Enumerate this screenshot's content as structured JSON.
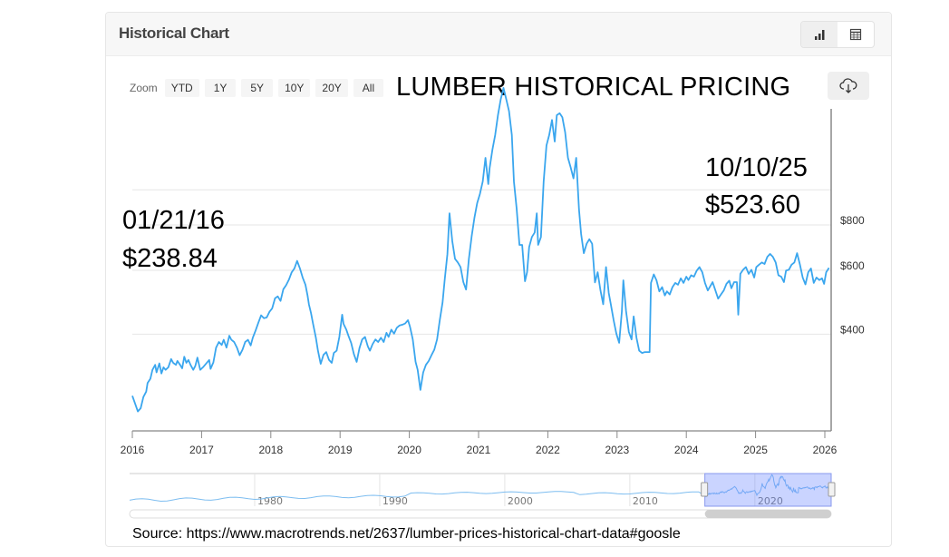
{
  "header": {
    "title": "Historical Chart",
    "toggle": [
      {
        "name": "chart-view",
        "icon": "bar-chart-icon",
        "active": true
      },
      {
        "name": "table-view",
        "icon": "table-icon",
        "active": false
      }
    ]
  },
  "zoom": {
    "label": "Zoom",
    "options": [
      "YTD",
      "1Y",
      "5Y",
      "10Y",
      "20Y",
      "All"
    ]
  },
  "download_icon": "cloud-download-icon",
  "annotations": {
    "start_date": "01/21/16",
    "start_price": "$238.84",
    "end_date": "10/10/25",
    "end_price": "$523.60"
  },
  "source": "Source: https://www.macrotrends.net/2637/lumber-prices-historical-chart-data#goosle",
  "chart_data": {
    "type": "line",
    "title": "LUMBER HISTORICAL PRICING",
    "xlabel": "",
    "ylabel": "",
    "y_scale": "log",
    "ylim": [
      205,
      1620
    ],
    "xlim": [
      2016.0,
      2026.1
    ],
    "x_ticks": [
      "2016",
      "2017",
      "2018",
      "2019",
      "2020",
      "2021",
      "2022",
      "2023",
      "2024",
      "2025",
      "2026"
    ],
    "y_ticks": [
      {
        "value": 400,
        "label": "$400"
      },
      {
        "value": 600,
        "label": "$600"
      },
      {
        "value": 800,
        "label": "$800"
      }
    ],
    "gridlines": [
      400,
      600,
      800,
      1000
    ],
    "grid": true,
    "legend": "none",
    "line_color": "#3aa6ee",
    "series": [
      {
        "name": "Lumber Price",
        "points": [
          [
            2016.0,
            263
          ],
          [
            2016.04,
            250
          ],
          [
            2016.08,
            238
          ],
          [
            2016.12,
            243
          ],
          [
            2016.16,
            261
          ],
          [
            2016.2,
            270
          ],
          [
            2016.22,
            285
          ],
          [
            2016.26,
            293
          ],
          [
            2016.29,
            310
          ],
          [
            2016.33,
            320
          ],
          [
            2016.35,
            305
          ],
          [
            2016.39,
            323
          ],
          [
            2016.42,
            303
          ],
          [
            2016.45,
            315
          ],
          [
            2016.48,
            310
          ],
          [
            2016.52,
            315
          ],
          [
            2016.56,
            332
          ],
          [
            2016.59,
            324
          ],
          [
            2016.63,
            320
          ],
          [
            2016.65,
            328
          ],
          [
            2016.69,
            320
          ],
          [
            2016.72,
            313
          ],
          [
            2016.75,
            337
          ],
          [
            2016.78,
            324
          ],
          [
            2016.81,
            330
          ],
          [
            2016.84,
            320
          ],
          [
            2016.88,
            310
          ],
          [
            2016.91,
            318
          ],
          [
            2016.94,
            335
          ],
          [
            2016.98,
            310
          ],
          [
            2017.02,
            315
          ],
          [
            2017.11,
            330
          ],
          [
            2017.13,
            312
          ],
          [
            2017.17,
            325
          ],
          [
            2017.21,
            357
          ],
          [
            2017.25,
            370
          ],
          [
            2017.29,
            363
          ],
          [
            2017.32,
            375
          ],
          [
            2017.36,
            357
          ],
          [
            2017.4,
            385
          ],
          [
            2017.43,
            375
          ],
          [
            2017.47,
            370
          ],
          [
            2017.51,
            357
          ],
          [
            2017.55,
            340
          ],
          [
            2017.59,
            352
          ],
          [
            2017.63,
            370
          ],
          [
            2017.67,
            375
          ],
          [
            2017.71,
            362
          ],
          [
            2017.74,
            380
          ],
          [
            2017.78,
            398
          ],
          [
            2017.82,
            418
          ],
          [
            2017.86,
            438
          ],
          [
            2017.9,
            430
          ],
          [
            2017.94,
            432
          ],
          [
            2017.98,
            448
          ],
          [
            2018.02,
            458
          ],
          [
            2018.06,
            488
          ],
          [
            2018.1,
            494
          ],
          [
            2018.14,
            480
          ],
          [
            2018.18,
            517
          ],
          [
            2018.22,
            530
          ],
          [
            2018.26,
            549
          ],
          [
            2018.3,
            575
          ],
          [
            2018.34,
            590
          ],
          [
            2018.38,
            619
          ],
          [
            2018.42,
            590
          ],
          [
            2018.46,
            557
          ],
          [
            2018.5,
            532
          ],
          [
            2018.53,
            497
          ],
          [
            2018.55,
            470
          ],
          [
            2018.58,
            445
          ],
          [
            2018.61,
            415
          ],
          [
            2018.65,
            380
          ],
          [
            2018.68,
            350
          ],
          [
            2018.72,
            322
          ],
          [
            2018.76,
            341
          ],
          [
            2018.8,
            347
          ],
          [
            2018.84,
            330
          ],
          [
            2018.88,
            324
          ],
          [
            2018.91,
            345
          ],
          [
            2018.95,
            350
          ],
          [
            2018.99,
            382
          ],
          [
            2019.03,
            440
          ],
          [
            2019.05,
            415
          ],
          [
            2019.09,
            400
          ],
          [
            2019.12,
            385
          ],
          [
            2019.16,
            368
          ],
          [
            2019.2,
            342
          ],
          [
            2019.24,
            326
          ],
          [
            2019.28,
            356
          ],
          [
            2019.32,
            376
          ],
          [
            2019.36,
            382
          ],
          [
            2019.4,
            360
          ],
          [
            2019.43,
            350
          ],
          [
            2019.47,
            365
          ],
          [
            2019.51,
            376
          ],
          [
            2019.55,
            370
          ],
          [
            2019.59,
            380
          ],
          [
            2019.63,
            370
          ],
          [
            2019.67,
            392
          ],
          [
            2019.7,
            382
          ],
          [
            2019.74,
            400
          ],
          [
            2019.78,
            390
          ],
          [
            2019.82,
            405
          ],
          [
            2019.86,
            411
          ],
          [
            2019.9,
            413
          ],
          [
            2019.94,
            416
          ],
          [
            2019.98,
            425
          ],
          [
            2020.01,
            407
          ],
          [
            2020.05,
            376
          ],
          [
            2020.09,
            326
          ],
          [
            2020.12,
            310
          ],
          [
            2020.16,
            273
          ],
          [
            2020.2,
            305
          ],
          [
            2020.24,
            320
          ],
          [
            2020.28,
            328
          ],
          [
            2020.32,
            340
          ],
          [
            2020.36,
            352
          ],
          [
            2020.4,
            376
          ],
          [
            2020.44,
            425
          ],
          [
            2020.48,
            476
          ],
          [
            2020.51,
            548
          ],
          [
            2020.55,
            646
          ],
          [
            2020.58,
            837
          ],
          [
            2020.62,
            701
          ],
          [
            2020.66,
            627
          ],
          [
            2020.7,
            613
          ],
          [
            2020.74,
            595
          ],
          [
            2020.78,
            541
          ],
          [
            2020.82,
            516
          ],
          [
            2020.86,
            627
          ],
          [
            2020.9,
            724
          ],
          [
            2020.94,
            813
          ],
          [
            2020.98,
            894
          ],
          [
            2021.02,
            947
          ],
          [
            2021.06,
            1024
          ],
          [
            2021.1,
            1190
          ],
          [
            2021.14,
            1008
          ],
          [
            2021.16,
            1116
          ],
          [
            2021.2,
            1255
          ],
          [
            2021.24,
            1375
          ],
          [
            2021.28,
            1562
          ],
          [
            2021.32,
            1723
          ],
          [
            2021.36,
            1855
          ],
          [
            2021.4,
            1723
          ],
          [
            2021.44,
            1600
          ],
          [
            2021.48,
            1375
          ],
          [
            2021.51,
            1024
          ],
          [
            2021.55,
            862
          ],
          [
            2021.59,
            685
          ],
          [
            2021.63,
            685
          ],
          [
            2021.67,
            544
          ],
          [
            2021.7,
            576
          ],
          [
            2021.73,
            676
          ],
          [
            2021.77,
            720
          ],
          [
            2021.81,
            741
          ],
          [
            2021.84,
            837
          ],
          [
            2021.86,
            685
          ],
          [
            2021.9,
            720
          ],
          [
            2021.94,
            1024
          ],
          [
            2021.98,
            1288
          ],
          [
            2022.02,
            1375
          ],
          [
            2022.06,
            1513
          ],
          [
            2022.1,
            1320
          ],
          [
            2022.13,
            1560
          ],
          [
            2022.17,
            1580
          ],
          [
            2022.21,
            1540
          ],
          [
            2022.25,
            1400
          ],
          [
            2022.29,
            1190
          ],
          [
            2022.33,
            1120
          ],
          [
            2022.37,
            1045
          ],
          [
            2022.41,
            1190
          ],
          [
            2022.45,
            857
          ],
          [
            2022.48,
            735
          ],
          [
            2022.52,
            650
          ],
          [
            2022.56,
            690
          ],
          [
            2022.6,
            710
          ],
          [
            2022.64,
            690
          ],
          [
            2022.68,
            540
          ],
          [
            2022.72,
            576
          ],
          [
            2022.76,
            513
          ],
          [
            2022.8,
            470
          ],
          [
            2022.84,
            595
          ],
          [
            2022.88,
            505
          ],
          [
            2022.91,
            470
          ],
          [
            2022.95,
            425
          ],
          [
            2022.99,
            390
          ],
          [
            2023.03,
            368
          ],
          [
            2023.07,
            450
          ],
          [
            2023.09,
            547
          ],
          [
            2023.13,
            450
          ],
          [
            2023.17,
            394
          ],
          [
            2023.21,
            376
          ],
          [
            2023.24,
            435
          ],
          [
            2023.28,
            380
          ],
          [
            2023.32,
            350
          ],
          [
            2023.36,
            345
          ],
          [
            2023.4,
            347
          ],
          [
            2023.43,
            347
          ],
          [
            2023.47,
            347
          ],
          [
            2023.49,
            538
          ],
          [
            2023.53,
            568
          ],
          [
            2023.57,
            547
          ],
          [
            2023.61,
            510
          ],
          [
            2023.65,
            524
          ],
          [
            2023.69,
            497
          ],
          [
            2023.72,
            510
          ],
          [
            2023.76,
            500
          ],
          [
            2023.8,
            524
          ],
          [
            2023.84,
            538
          ],
          [
            2023.88,
            532
          ],
          [
            2023.92,
            554
          ],
          [
            2023.96,
            538
          ],
          [
            2024.0,
            560
          ],
          [
            2024.03,
            548
          ],
          [
            2024.07,
            565
          ],
          [
            2024.11,
            560
          ],
          [
            2024.15,
            582
          ],
          [
            2024.19,
            595
          ],
          [
            2024.23,
            576
          ],
          [
            2024.27,
            538
          ],
          [
            2024.31,
            513
          ],
          [
            2024.34,
            525
          ],
          [
            2024.38,
            541
          ],
          [
            2024.42,
            513
          ],
          [
            2024.46,
            487
          ],
          [
            2024.5,
            500
          ],
          [
            2024.54,
            513
          ],
          [
            2024.58,
            535
          ],
          [
            2024.62,
            546
          ],
          [
            2024.65,
            520
          ],
          [
            2024.69,
            541
          ],
          [
            2024.73,
            541
          ],
          [
            2024.75,
            440
          ],
          [
            2024.78,
            570
          ],
          [
            2024.82,
            585
          ],
          [
            2024.86,
            595
          ],
          [
            2024.9,
            570
          ],
          [
            2024.94,
            585
          ],
          [
            2024.98,
            557
          ],
          [
            2025.01,
            595
          ],
          [
            2025.05,
            604
          ],
          [
            2025.09,
            613
          ],
          [
            2025.13,
            607
          ],
          [
            2025.17,
            635
          ],
          [
            2025.21,
            647
          ],
          [
            2025.25,
            635
          ],
          [
            2025.29,
            613
          ],
          [
            2025.33,
            565
          ],
          [
            2025.37,
            560
          ],
          [
            2025.41,
            541
          ],
          [
            2025.44,
            582
          ],
          [
            2025.48,
            585
          ],
          [
            2025.52,
            604
          ],
          [
            2025.56,
            613
          ],
          [
            2025.6,
            650
          ],
          [
            2025.64,
            605
          ],
          [
            2025.68,
            557
          ],
          [
            2025.72,
            533
          ],
          [
            2025.76,
            576
          ],
          [
            2025.8,
            590
          ],
          [
            2025.84,
            538
          ],
          [
            2025.88,
            557
          ],
          [
            2025.92,
            548
          ],
          [
            2025.96,
            554
          ],
          [
            2025.99,
            535
          ],
          [
            2026.02,
            576
          ],
          [
            2026.06,
            592
          ]
        ]
      }
    ]
  },
  "navigator": {
    "labels": [
      "1980",
      "1990",
      "2000",
      "2010",
      "2020"
    ]
  }
}
